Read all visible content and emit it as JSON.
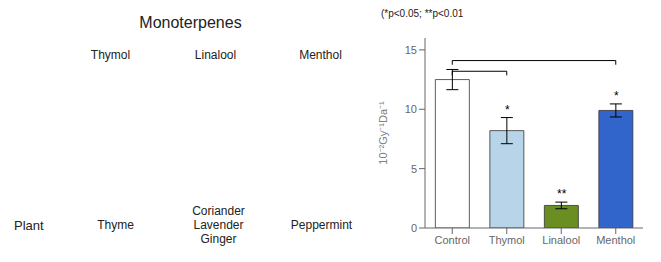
{
  "chart_data": {
    "type": "bar",
    "title": "Monoterpenes",
    "categories": [
      "Control",
      "Thymol",
      "Linalool",
      "Menthol"
    ],
    "values": [
      12.5,
      8.2,
      1.9,
      9.9
    ],
    "errors": [
      0.85,
      1.1,
      0.28,
      0.55
    ],
    "colors": [
      "#ffffff",
      "#b8d4e8",
      "#6b8e23",
      "#3265cc"
    ],
    "ylabel": "10⁻²Gy⁻¹Da⁻¹",
    "ylim": [
      0,
      16
    ],
    "yticks": [
      0,
      5,
      10,
      15
    ],
    "grid": false,
    "significance_labels": [
      null,
      "*",
      "**",
      "*"
    ],
    "brackets": [
      {
        "from": "Control",
        "to": "Thymol",
        "y": 13.2
      },
      {
        "from": "Control",
        "to": "Menthol",
        "y": 14.1
      }
    ],
    "annotations": [
      "Thymol",
      "Linalool",
      "Menthol",
      "Plant",
      "Thyme",
      "Coriander\nLavender\nGinger",
      "Peppermint",
      "(*p<0.05; **p<0.01"
    ]
  }
}
